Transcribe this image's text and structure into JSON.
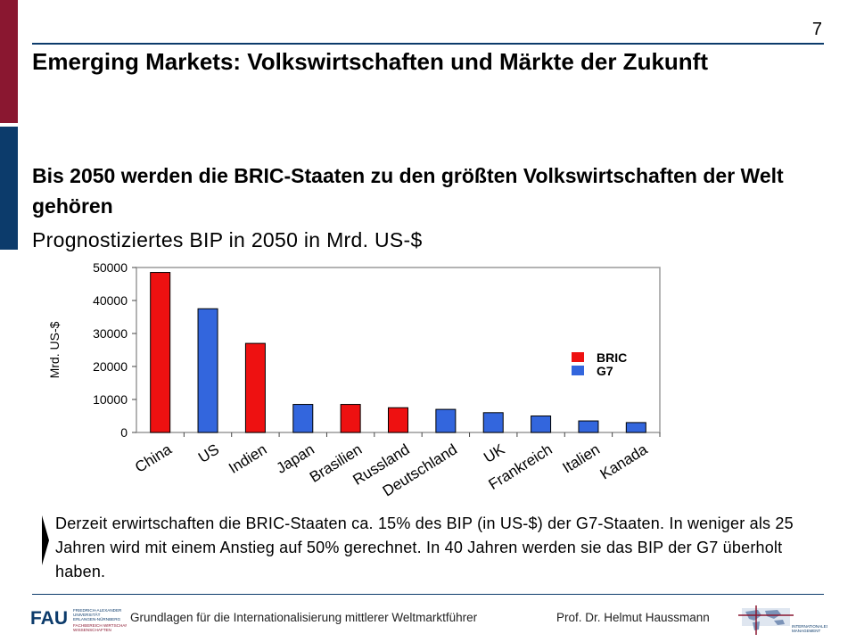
{
  "slide": {
    "page_number": "7",
    "title": "Emerging Markets: Volkswirtschaften und Märkte der Zukunft",
    "headline": "Bis 2050 werden die BRIC-Staaten zu den größten Volkswirtschaften der Welt gehören",
    "subline": "Prognostiziertes BIP in 2050 in Mrd. US-$",
    "body_text": "Derzeit erwirtschaften die BRIC-Staaten ca. 15% des BIP (in US-$) der G7-Staaten. In weniger als 25 Jahren wird mit einem Anstieg auf 50% gerechnet. In 40 Jahren werden sie das BIP der G7 überholt haben.",
    "footer_text": "Grundlagen für die Internationalisierung mittlerer Weltmarktführer",
    "footer_author": "Prof. Dr. Helmut Haussmann"
  },
  "logos": {
    "fau_mark": "FAU",
    "fau_lines": [
      "FRIEDRICH-ALEXANDER",
      "UNIVERSITÄT",
      "ERLANGEN-NÜRNBERG",
      "FACHBEREICH WIRTSCHAFTS-",
      "WISSENSCHAFTEN"
    ],
    "intl_lines": [
      "INTERNATIONALES",
      "MANAGEMENT"
    ]
  },
  "colors": {
    "accent_top": "#8a1730",
    "accent_bottom": "#0c3b6b",
    "bric": "#ee1111",
    "g7": "#3366dd"
  },
  "chart_data": {
    "type": "bar",
    "categories": [
      "China",
      "US",
      "Indien",
      "Japan",
      "Brasilien",
      "Russland",
      "Deutschland",
      "UK",
      "Frankreich",
      "Italien",
      "Kanada"
    ],
    "values": [
      48500,
      37500,
      27000,
      8500,
      8500,
      7500,
      7000,
      6000,
      5000,
      3500,
      3000
    ],
    "groups": [
      "BRIC",
      "G7",
      "BRIC",
      "G7",
      "BRIC",
      "BRIC",
      "G7",
      "G7",
      "G7",
      "G7",
      "G7"
    ],
    "legend": [
      "BRIC",
      "G7"
    ],
    "legend_position": "right",
    "ylabel": "Mrd. US-$",
    "ylim": [
      0,
      50000
    ],
    "yticks": [
      0,
      10000,
      20000,
      30000,
      40000,
      50000
    ],
    "grid": false
  }
}
